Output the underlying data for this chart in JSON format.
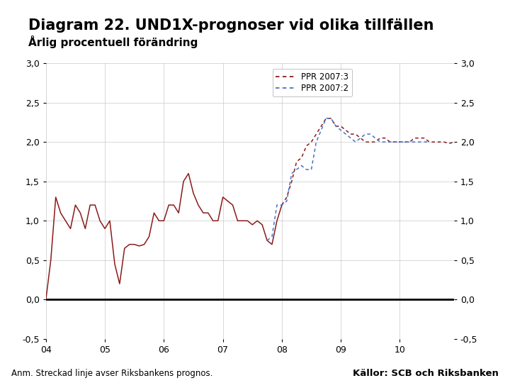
{
  "title": "Diagram 22. UND1X-prognoser vid olika tillfällen",
  "subtitle": "Årlig procentuell förändring",
  "note": "Anm. Streckad linje avser Riksbankens prognos.",
  "source": "Källor: SCB och Riksbanken",
  "xlim": [
    2004.0,
    2010.917
  ],
  "ylim": [
    -0.5,
    3.0
  ],
  "yticks": [
    -0.5,
    0.0,
    0.5,
    1.0,
    1.5,
    2.0,
    2.5,
    3.0
  ],
  "xticks": [
    2004,
    2005,
    2006,
    2007,
    2008,
    2009,
    2010
  ],
  "xtick_labels": [
    "04",
    "05",
    "06",
    "07",
    "08",
    "09",
    "10"
  ],
  "legend_labels": [
    "PPR 2007:3",
    "PPR 2007:2"
  ],
  "line1_color": "#8B1A1A",
  "line2_color": "#4472C4",
  "background_color": "#FFFFFF",
  "footer_color": "#1F4E79",
  "grid_color": "#BBBBBB",
  "title_fontsize": 15,
  "subtitle_fontsize": 11,
  "note_fontsize": 8.5,
  "source_fontsize": 9.5,
  "logo_color": "#1F4E79",
  "actual_x": [
    2004.0,
    2004.083,
    2004.167,
    2004.25,
    2004.333,
    2004.417,
    2004.5,
    2004.583,
    2004.667,
    2004.75,
    2004.833,
    2004.917,
    2005.0,
    2005.083,
    2005.167,
    2005.25,
    2005.333,
    2005.417,
    2005.5,
    2005.583,
    2005.667,
    2005.75,
    2005.833,
    2005.917,
    2006.0,
    2006.083,
    2006.167,
    2006.25,
    2006.333,
    2006.417,
    2006.5,
    2006.583,
    2006.667,
    2006.75,
    2006.833,
    2006.917,
    2007.0,
    2007.083,
    2007.167,
    2007.25,
    2007.333,
    2007.417,
    2007.5,
    2007.583,
    2007.667,
    2007.75,
    2007.833,
    2007.917,
    2008.0
  ],
  "actual_y": [
    0.0,
    0.5,
    1.3,
    1.1,
    1.0,
    0.9,
    1.2,
    1.1,
    0.9,
    1.2,
    1.2,
    1.0,
    0.9,
    1.0,
    0.45,
    0.2,
    0.65,
    0.7,
    0.7,
    0.68,
    0.7,
    0.8,
    1.1,
    1.0,
    1.0,
    1.2,
    1.2,
    1.1,
    1.5,
    1.6,
    1.35,
    1.2,
    1.1,
    1.1,
    1.0,
    1.0,
    1.3,
    1.25,
    1.2,
    1.0,
    1.0,
    1.0,
    0.95,
    1.0,
    0.95,
    0.75,
    0.7,
    1.0,
    1.2
  ],
  "ppr3_x": [
    2008.0,
    2008.083,
    2008.167,
    2008.25,
    2008.333,
    2008.417,
    2008.5,
    2008.583,
    2008.667,
    2008.75,
    2008.833,
    2008.917,
    2009.0,
    2009.083,
    2009.167,
    2009.25,
    2009.333,
    2009.417,
    2009.5,
    2009.583,
    2009.667,
    2009.75,
    2009.833,
    2009.917,
    2010.0,
    2010.083,
    2010.167,
    2010.25,
    2010.333,
    2010.417,
    2010.5,
    2010.583,
    2010.667,
    2010.75,
    2010.833,
    2010.917
  ],
  "ppr3_y": [
    1.2,
    1.3,
    1.5,
    1.75,
    1.8,
    1.95,
    2.0,
    2.1,
    2.2,
    2.3,
    2.3,
    2.2,
    2.2,
    2.15,
    2.1,
    2.1,
    2.05,
    2.0,
    2.0,
    2.0,
    2.05,
    2.05,
    2.0,
    2.0,
    2.0,
    2.0,
    2.0,
    2.05,
    2.05,
    2.05,
    2.0,
    2.0,
    2.0,
    2.0,
    1.98,
    2.0
  ],
  "ppr2_x": [
    2007.75,
    2007.833,
    2007.917,
    2008.0,
    2008.083,
    2008.167,
    2008.25,
    2008.333,
    2008.417,
    2008.5,
    2008.583,
    2008.667,
    2008.75,
    2008.833,
    2008.917,
    2009.0,
    2009.083,
    2009.167,
    2009.25,
    2009.333,
    2009.417,
    2009.5,
    2009.583,
    2009.667,
    2009.75,
    2009.833,
    2009.917,
    2010.0,
    2010.083,
    2010.167,
    2010.25,
    2010.333,
    2010.417,
    2010.5
  ],
  "ppr2_y": [
    0.75,
    0.8,
    1.2,
    1.2,
    1.25,
    1.6,
    1.65,
    1.7,
    1.65,
    1.65,
    2.0,
    2.15,
    2.3,
    2.3,
    2.2,
    2.15,
    2.1,
    2.05,
    2.0,
    2.05,
    2.1,
    2.1,
    2.05,
    2.0,
    2.0,
    2.0,
    2.0,
    2.0,
    2.0,
    2.0,
    2.0,
    2.0,
    2.0,
    2.0
  ]
}
